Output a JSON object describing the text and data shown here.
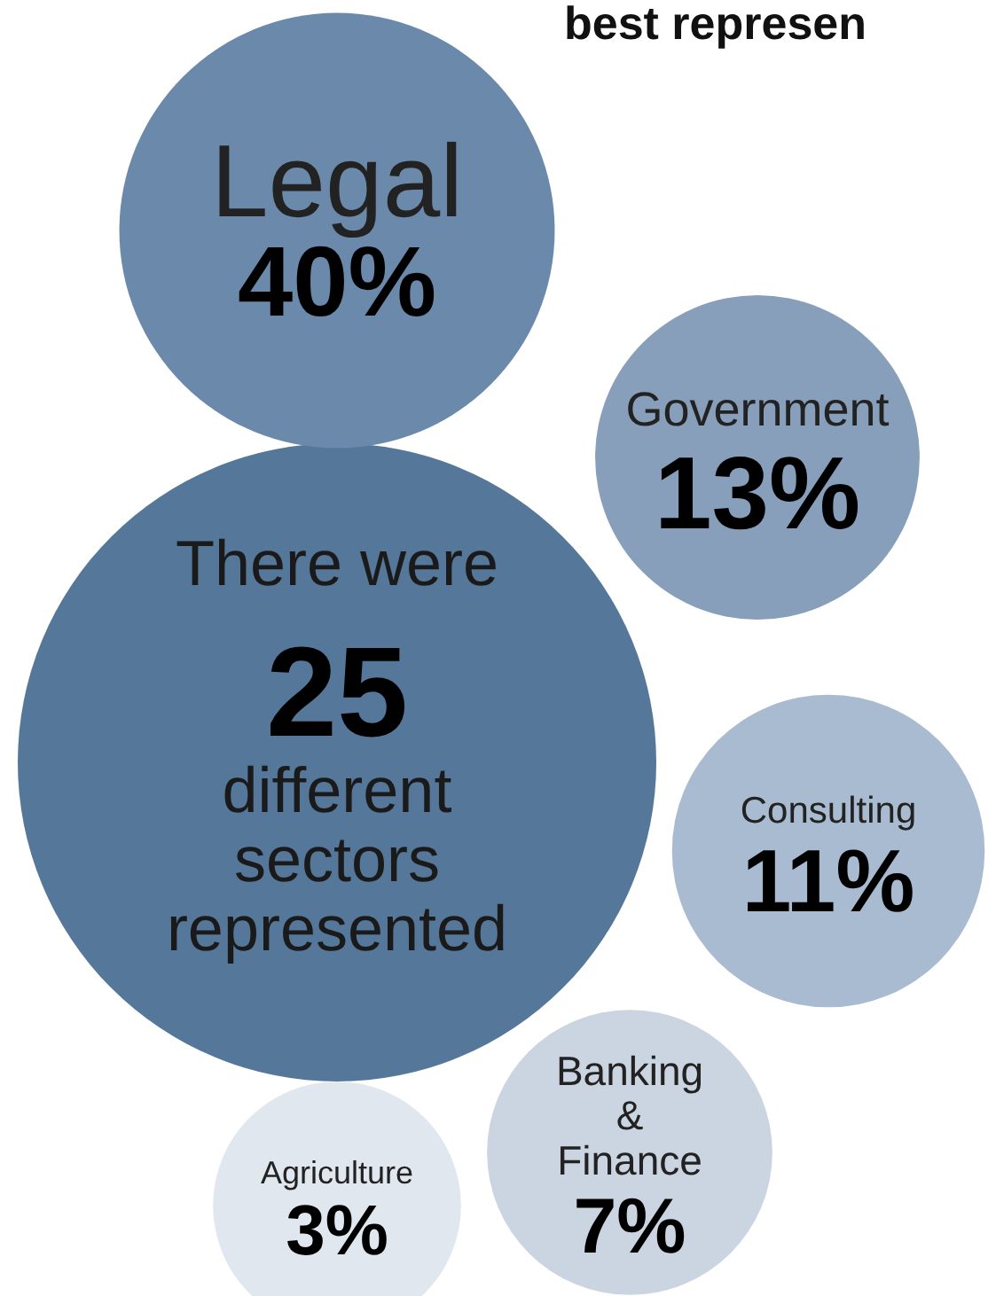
{
  "chart_data": {
    "type": "other",
    "title": "best represen",
    "categories": [
      "Legal",
      "Government",
      "Consulting",
      "Banking & Finance",
      "Agriculture"
    ],
    "values": [
      40,
      13,
      11,
      7,
      3
    ],
    "value_labels": [
      "40%",
      "13%",
      "11%",
      "7%",
      "3%"
    ],
    "colors": [
      "#6b8aab",
      "#879fba",
      "#a9bbd0",
      "#cbd5e1",
      "#e1e7ee"
    ],
    "annotations": [
      "There were 25 different sectors represented"
    ]
  }
}
